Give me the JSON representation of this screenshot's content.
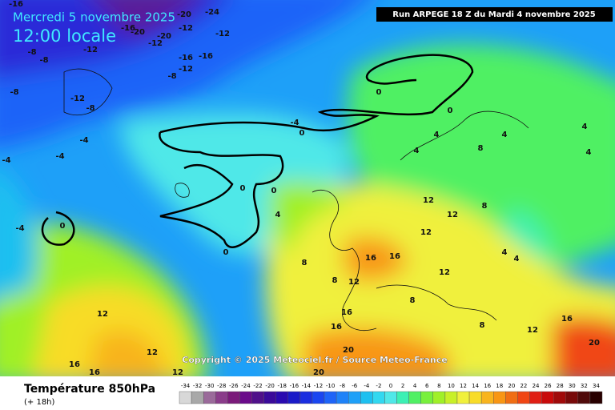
{
  "header": {
    "date": "Mercredi 5 novembre 2025",
    "time": "12:00 locale",
    "run": "Run ARPEGE 18 Z du Mardi 4 novembre 2025"
  },
  "copyright": "Copyright © 2025 Meteociel.fr / Source Meteo-France",
  "footer": {
    "title": "Température 850hPa",
    "lead": "(+ 18h)"
  },
  "legend": {
    "values": [
      -34,
      -32,
      -30,
      -28,
      -26,
      -24,
      -22,
      -20,
      -18,
      -16,
      -14,
      -12,
      -10,
      -8,
      -6,
      -4,
      -2,
      0,
      2,
      4,
      6,
      8,
      10,
      12,
      14,
      16,
      18,
      20,
      22,
      24,
      26,
      28,
      30,
      32,
      34
    ],
    "colors": [
      "#d8d8d8",
      "#a8a8a8",
      "#9a6a9a",
      "#8a3c8a",
      "#7a1a7a",
      "#6a0a8a",
      "#50108a",
      "#3a0a9a",
      "#2a0ab0",
      "#1a1ac8",
      "#1a2ee0",
      "#1a46f0",
      "#1e64f8",
      "#1e82f8",
      "#1ea0f8",
      "#1ec0f0",
      "#32d8f0",
      "#50e8e8",
      "#3cf0b4",
      "#50f064",
      "#78f03c",
      "#a0f028",
      "#c8f028",
      "#f0f03c",
      "#f8dc28",
      "#f8b41e",
      "#f89614",
      "#f06e14",
      "#f04614",
      "#e01e14",
      "#c80a0a",
      "#a00a0a",
      "#780a0a",
      "#500a0a",
      "#280000"
    ]
  },
  "map": {
    "labels": [
      -16,
      -20,
      -24,
      -16,
      -20,
      -20,
      -12,
      -12,
      -8,
      -8,
      -12,
      -12,
      -16,
      -16,
      -8,
      -12,
      -8,
      -12,
      -8,
      -4,
      -4,
      -4,
      -4,
      0,
      0,
      -4,
      0,
      0,
      0,
      4,
      0,
      0,
      4,
      4,
      4,
      4,
      4,
      8,
      8,
      12,
      12,
      12,
      16,
      16,
      12,
      8,
      12,
      8,
      16,
      16,
      20,
      12,
      12,
      16,
      16,
      12,
      20,
      16,
      20,
      8,
      12,
      4,
      4,
      8
    ]
  }
}
